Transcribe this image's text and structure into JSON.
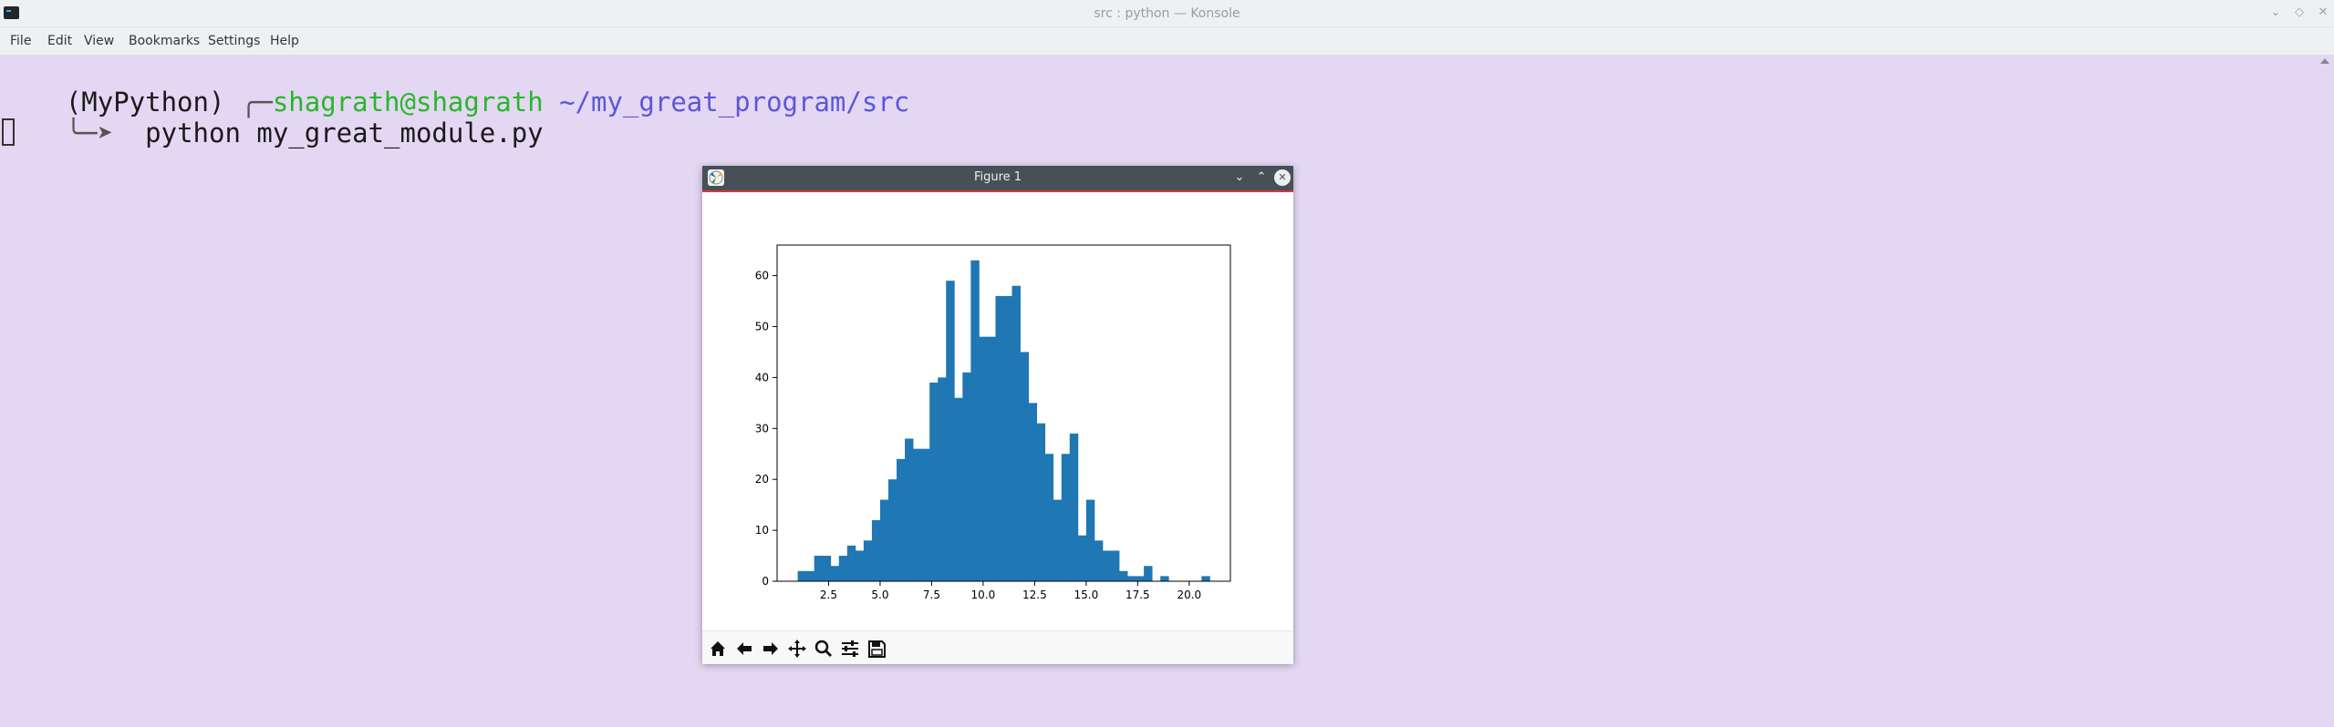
{
  "konsole": {
    "title": "src : python — Konsole",
    "menu": [
      "File",
      "Edit",
      "View",
      "Bookmarks",
      "Settings",
      "Help"
    ],
    "window_buttons": [
      "minimize-icon",
      "maximize-icon",
      "close-icon"
    ]
  },
  "terminal": {
    "line1": {
      "env": "(MyPython)",
      "box_top": "╭─",
      "user_host": "shagrath@shagrath",
      "path": "~/my_great_program/src"
    },
    "line2": {
      "arrow": "╰─➤",
      "command": "python my_great_module.py"
    }
  },
  "figure_window": {
    "title": "Figure 1",
    "toolbar": [
      "home-icon",
      "back-icon",
      "forward-icon",
      "pan-icon",
      "zoom-icon",
      "configure-subplots-icon",
      "save-icon"
    ]
  },
  "chart_data": {
    "type": "bar",
    "bin_width": 0.4,
    "x": [
      1.0,
      1.4,
      1.8,
      2.2,
      2.6,
      3.0,
      3.4,
      3.8,
      4.2,
      4.6,
      5.0,
      5.4,
      5.8,
      6.2,
      6.6,
      7.0,
      7.4,
      7.8,
      8.2,
      8.6,
      9.0,
      9.4,
      9.8,
      10.2,
      10.6,
      11.0,
      11.4,
      11.8,
      12.2,
      12.6,
      13.0,
      13.4,
      13.8,
      14.2,
      14.6,
      15.0,
      15.4,
      15.8,
      16.2,
      16.6,
      17.0,
      17.4,
      17.8,
      18.2,
      18.6,
      19.0,
      19.4,
      19.8,
      20.2,
      20.6
    ],
    "values": [
      2,
      2,
      5,
      5,
      3,
      5,
      7,
      6,
      8,
      12,
      16,
      20,
      24,
      28,
      26,
      26,
      39,
      40,
      59,
      36,
      41,
      63,
      48,
      48,
      56,
      56,
      58,
      45,
      35,
      31,
      25,
      16,
      25,
      29,
      9,
      16,
      8,
      6,
      6,
      2,
      1,
      1,
      3,
      0,
      1,
      0,
      0,
      0,
      0,
      1
    ],
    "xlim": [
      0.0,
      22.0
    ],
    "ylim": [
      0,
      66
    ],
    "xticks": [
      2.5,
      5.0,
      7.5,
      10.0,
      12.5,
      15.0,
      17.5,
      20.0
    ],
    "xtick_labels": [
      "2.5",
      "5.0",
      "7.5",
      "10.0",
      "12.5",
      "15.0",
      "17.5",
      "20.0"
    ],
    "yticks": [
      0,
      10,
      20,
      30,
      40,
      50,
      60
    ],
    "ytick_labels": [
      "0",
      "10",
      "20",
      "30",
      "40",
      "50",
      "60"
    ],
    "color": "#1f77b4",
    "grid": false
  }
}
